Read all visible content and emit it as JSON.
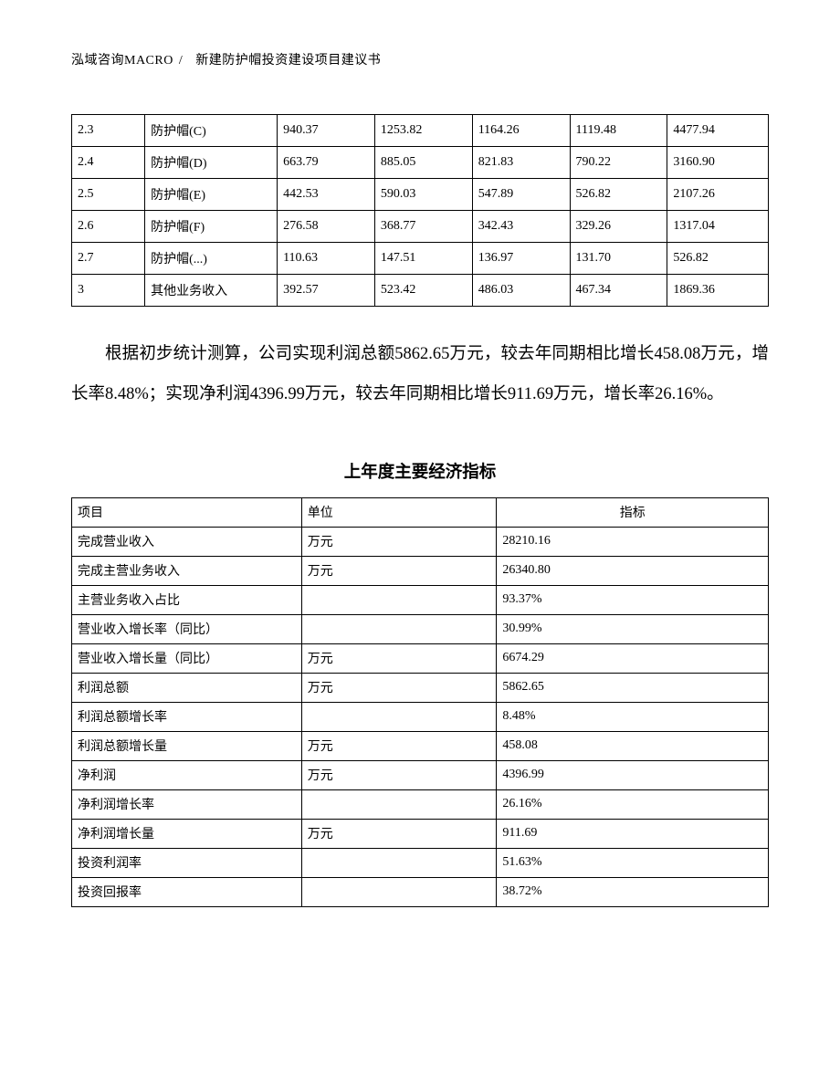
{
  "header": {
    "company": "泓域咨询MACRO",
    "separator": "/",
    "title": "新建防护帽投资建设项目建议书"
  },
  "table1": {
    "rows": [
      [
        "2.3",
        "防护帽(C)",
        "940.37",
        "1253.82",
        "1164.26",
        "1119.48",
        "4477.94"
      ],
      [
        "2.4",
        "防护帽(D)",
        "663.79",
        "885.05",
        "821.83",
        "790.22",
        "3160.90"
      ],
      [
        "2.5",
        "防护帽(E)",
        "442.53",
        "590.03",
        "547.89",
        "526.82",
        "2107.26"
      ],
      [
        "2.6",
        "防护帽(F)",
        "276.58",
        "368.77",
        "342.43",
        "329.26",
        "1317.04"
      ],
      [
        "2.7",
        "防护帽(...)",
        "110.63",
        "147.51",
        "136.97",
        "131.70",
        "526.82"
      ],
      [
        "3",
        "其他业务收入",
        "392.57",
        "523.42",
        "486.03",
        "467.34",
        "1869.36"
      ]
    ]
  },
  "paragraph": "根据初步统计测算，公司实现利润总额5862.65万元，较去年同期相比增长458.08万元，增长率8.48%；实现净利润4396.99万元，较去年同期相比增长911.69万元，增长率26.16%。",
  "section_title": "上年度主要经济指标",
  "table2": {
    "columns": [
      "项目",
      "单位",
      "指标"
    ],
    "rows": [
      [
        "完成营业收入",
        "万元",
        "28210.16"
      ],
      [
        "完成主营业务收入",
        "万元",
        "26340.80"
      ],
      [
        "主营业务收入占比",
        "",
        "93.37%"
      ],
      [
        "营业收入增长率（同比）",
        "",
        "30.99%"
      ],
      [
        "营业收入增长量（同比）",
        "万元",
        "6674.29"
      ],
      [
        "利润总额",
        "万元",
        "5862.65"
      ],
      [
        "利润总额增长率",
        "",
        "8.48%"
      ],
      [
        "利润总额增长量",
        "万元",
        "458.08"
      ],
      [
        "净利润",
        "万元",
        "4396.99"
      ],
      [
        "净利润增长率",
        "",
        "26.16%"
      ],
      [
        "净利润增长量",
        "万元",
        "911.69"
      ],
      [
        "投资利润率",
        "",
        "51.63%"
      ],
      [
        "投资回报率",
        "",
        "38.72%"
      ]
    ]
  }
}
